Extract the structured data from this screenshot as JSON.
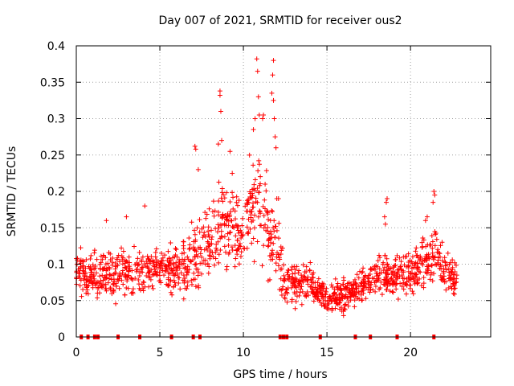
{
  "chart_data": {
    "type": "scatter",
    "title": "Day 007 of 2021, SRMTID for receiver ous2",
    "xlabel": "GPS time / hours",
    "ylabel": "SRMTID / TECUs",
    "xlim": [
      0,
      24.8
    ],
    "ylim": [
      0,
      0.4
    ],
    "xticks": [
      0,
      5,
      10,
      15,
      20
    ],
    "xtick_labels": [
      "0",
      "5",
      "10",
      "15",
      "20"
    ],
    "yticks": [
      0,
      0.05,
      0.1,
      0.15,
      0.2,
      0.25,
      0.3,
      0.35,
      0.4
    ],
    "ytick_labels": [
      "0",
      "0.05",
      "0.1",
      "0.15",
      "0.2",
      "0.25",
      "0.3",
      "0.35",
      "0.4"
    ],
    "grid": true,
    "marker": "plus",
    "color": "#ff0000",
    "envelope": {
      "description": "Approximate trend of the dense point cloud (center value and spread per hour, data units)",
      "x": [
        0,
        1,
        2,
        3,
        4,
        5,
        6,
        7,
        8,
        8.7,
        9.5,
        10,
        10.5,
        11,
        11.5,
        12,
        12.5,
        13,
        14,
        15,
        16,
        17,
        18,
        19,
        20,
        21,
        21.5,
        22,
        22.8
      ],
      "center": [
        0.09,
        0.085,
        0.085,
        0.09,
        0.095,
        0.095,
        0.09,
        0.1,
        0.13,
        0.17,
        0.15,
        0.14,
        0.19,
        0.2,
        0.14,
        0.12,
        0.07,
        0.075,
        0.075,
        0.05,
        0.06,
        0.07,
        0.085,
        0.08,
        0.09,
        0.1,
        0.12,
        0.09,
        0.08
      ],
      "spread": [
        0.03,
        0.03,
        0.035,
        0.035,
        0.035,
        0.035,
        0.04,
        0.05,
        0.06,
        0.07,
        0.06,
        0.05,
        0.08,
        0.09,
        0.06,
        0.06,
        0.025,
        0.03,
        0.03,
        0.02,
        0.025,
        0.025,
        0.03,
        0.03,
        0.03,
        0.035,
        0.04,
        0.03,
        0.025
      ]
    },
    "highlight_points": [
      [
        8.6,
        0.338
      ],
      [
        8.6,
        0.332
      ],
      [
        8.65,
        0.31
      ],
      [
        8.7,
        0.27
      ],
      [
        8.5,
        0.265
      ],
      [
        7.1,
        0.262
      ],
      [
        7.15,
        0.258
      ],
      [
        7.3,
        0.23
      ],
      [
        9.2,
        0.255
      ],
      [
        10.8,
        0.382
      ],
      [
        10.85,
        0.365
      ],
      [
        10.9,
        0.33
      ],
      [
        10.95,
        0.305
      ],
      [
        10.7,
        0.3
      ],
      [
        10.6,
        0.285
      ],
      [
        11.2,
        0.305
      ],
      [
        11.15,
        0.3
      ],
      [
        11.3,
        0.21
      ],
      [
        11.8,
        0.38
      ],
      [
        11.75,
        0.36
      ],
      [
        11.7,
        0.335
      ],
      [
        11.8,
        0.325
      ],
      [
        11.85,
        0.3
      ],
      [
        11.9,
        0.275
      ],
      [
        11.95,
        0.26
      ],
      [
        12.0,
        0.19
      ],
      [
        12.1,
        0.19
      ],
      [
        4.1,
        0.18
      ],
      [
        3.0,
        0.165
      ],
      [
        1.8,
        0.16
      ],
      [
        18.6,
        0.19
      ],
      [
        18.55,
        0.185
      ],
      [
        18.45,
        0.165
      ],
      [
        18.5,
        0.155
      ],
      [
        21.4,
        0.2
      ],
      [
        21.45,
        0.195
      ],
      [
        21.35,
        0.185
      ],
      [
        21.0,
        0.165
      ],
      [
        20.9,
        0.16
      ]
    ],
    "zero_markers_x": [
      0.3,
      0.7,
      1.1,
      1.3,
      2.5,
      3.8,
      5.7,
      7.0,
      7.4,
      12.2,
      12.4,
      12.6,
      14.6,
      16.7,
      17.6,
      19.2,
      21.4
    ]
  }
}
